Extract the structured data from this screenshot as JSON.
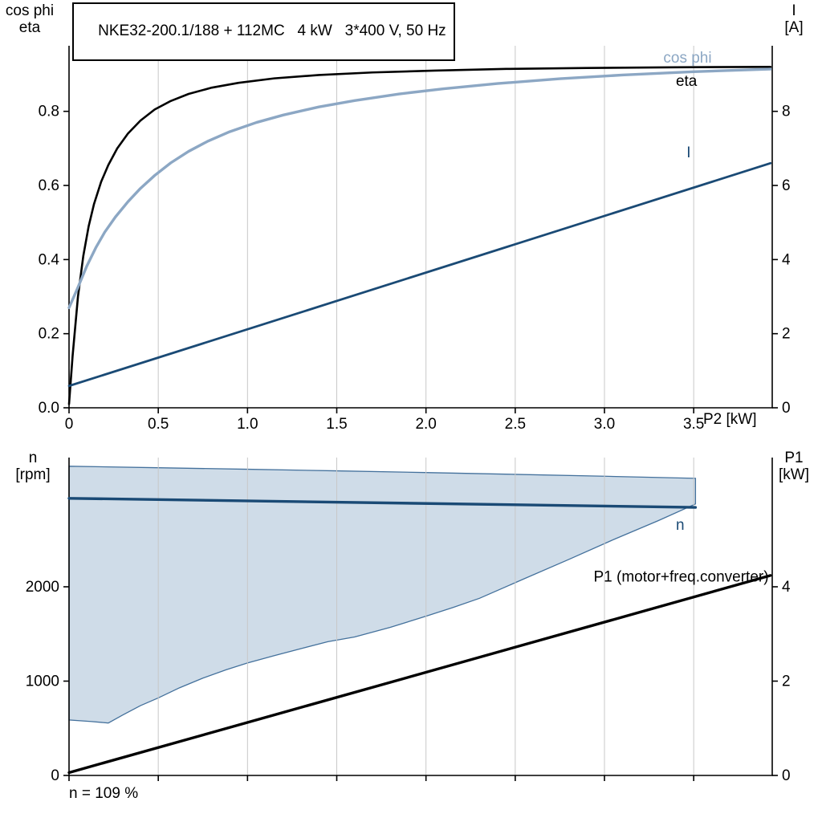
{
  "title_box": "NKE32-200.1/188 + 112MC   4 kW   3*400 V, 50 Hz",
  "footnote": "n = 109 %",
  "x_axis_label": "P2 [kW]",
  "axis_corner_labels": {
    "top_left_line1": "cos phi",
    "top_left_line2": "eta",
    "top_right_line1": "I",
    "top_right_line2": "[A]",
    "bottom_left_line1": "n",
    "bottom_left_line2": "[rpm]",
    "bottom_right_line1": "P1",
    "bottom_right_line2": "[kW]"
  },
  "colors": {
    "eta": "#000000",
    "cos_phi": "#8ca7c4",
    "line_blue": "#1a4a75",
    "p1": "#000000",
    "envelope_fill": "#cfdce8",
    "envelope_stroke": "#44719c",
    "grid": "#c8c8c8",
    "axis": "#000000",
    "background": "#ffffff"
  },
  "chart_data": [
    {
      "type": "line",
      "title": "NKE32-200.1/188 + 112MC   4 kW   3*400 V, 50 Hz",
      "xlabel": "P2 [kW]",
      "ylabel_left": "cos phi / eta",
      "ylabel_right": "I [A]",
      "xlim": [
        0,
        3.94
      ],
      "ylim_left": [
        0,
        0.977
      ],
      "ylim_right": [
        0,
        9.77
      ],
      "show_x_labels": true,
      "x_ticks": [
        {
          "v": 0,
          "t": "0"
        },
        {
          "v": 0.5,
          "t": "0.5"
        },
        {
          "v": 1,
          "t": "1.0"
        },
        {
          "v": 1.5,
          "t": "1.5"
        },
        {
          "v": 2,
          "t": "2.0"
        },
        {
          "v": 2.5,
          "t": "2.5"
        },
        {
          "v": 3,
          "t": "3.0"
        },
        {
          "v": 3.5,
          "t": "3.5"
        }
      ],
      "left_ticks": [
        {
          "v": 0,
          "t": "0.0"
        },
        {
          "v": 0.2,
          "t": "0.2"
        },
        {
          "v": 0.4,
          "t": "0.4"
        },
        {
          "v": 0.6,
          "t": "0.6"
        },
        {
          "v": 0.8,
          "t": "0.8"
        }
      ],
      "right_ticks": [
        {
          "v": 0,
          "t": "0"
        },
        {
          "v": 2,
          "t": "2"
        },
        {
          "v": 4,
          "t": "4"
        },
        {
          "v": 6,
          "t": "6"
        },
        {
          "v": 8,
          "t": "8"
        }
      ],
      "series": [
        {
          "name": "eta",
          "axis": "left",
          "color": "eta",
          "width": 2.6,
          "points": [
            [
              0,
              0.01
            ],
            [
              0.02,
              0.14
            ],
            [
              0.05,
              0.3
            ],
            [
              0.08,
              0.41
            ],
            [
              0.11,
              0.49
            ],
            [
              0.14,
              0.55
            ],
            [
              0.18,
              0.61
            ],
            [
              0.22,
              0.655
            ],
            [
              0.27,
              0.7
            ],
            [
              0.33,
              0.74
            ],
            [
              0.4,
              0.775
            ],
            [
              0.48,
              0.805
            ],
            [
              0.57,
              0.828
            ],
            [
              0.67,
              0.847
            ],
            [
              0.8,
              0.864
            ],
            [
              0.95,
              0.877
            ],
            [
              1.15,
              0.889
            ],
            [
              1.4,
              0.898
            ],
            [
              1.7,
              0.905
            ],
            [
              2.05,
              0.91
            ],
            [
              2.45,
              0.9145
            ],
            [
              2.9,
              0.917
            ],
            [
              3.4,
              0.919
            ],
            [
              3.93,
              0.92
            ]
          ]
        },
        {
          "name": "cos phi",
          "axis": "left",
          "color": "cos_phi",
          "width": 3.4,
          "points": [
            [
              0,
              0.27
            ],
            [
              0.05,
              0.325
            ],
            [
              0.1,
              0.383
            ],
            [
              0.15,
              0.432
            ],
            [
              0.2,
              0.474
            ],
            [
              0.26,
              0.515
            ],
            [
              0.33,
              0.556
            ],
            [
              0.4,
              0.592
            ],
            [
              0.48,
              0.627
            ],
            [
              0.57,
              0.661
            ],
            [
              0.67,
              0.692
            ],
            [
              0.78,
              0.72
            ],
            [
              0.9,
              0.745
            ],
            [
              1.05,
              0.77
            ],
            [
              1.2,
              0.79
            ],
            [
              1.4,
              0.812
            ],
            [
              1.6,
              0.829
            ],
            [
              1.85,
              0.847
            ],
            [
              2.1,
              0.861
            ],
            [
              2.4,
              0.875
            ],
            [
              2.75,
              0.888
            ],
            [
              3.1,
              0.898
            ],
            [
              3.5,
              0.907
            ],
            [
              3.93,
              0.914
            ]
          ]
        },
        {
          "name": "I",
          "axis": "right",
          "color": "line_blue",
          "width": 2.8,
          "points": [
            [
              0,
              0.59
            ],
            [
              3.93,
              6.6
            ]
          ]
        }
      ],
      "annotations": [
        {
          "text": "cos phi",
          "x": 3.33,
          "y": 0.932,
          "axis": "left",
          "color": "cos_phi",
          "anchor": "start"
        },
        {
          "text": "eta",
          "x": 3.4,
          "y": 0.869,
          "axis": "left",
          "color": "eta",
          "anchor": "start"
        },
        {
          "text": "I",
          "x": 3.46,
          "y": 0.676,
          "axis": "left",
          "color": "line_blue",
          "anchor": "start"
        }
      ]
    },
    {
      "type": "line",
      "ylabel_left": "n [rpm]",
      "ylabel_right": "P1 [kW]",
      "xlim": [
        0,
        3.94
      ],
      "ylim_left": [
        0,
        3370
      ],
      "ylim_right": [
        0,
        6.74
      ],
      "show_x_labels": false,
      "x_ticks": [
        {
          "v": 0
        },
        {
          "v": 0.5
        },
        {
          "v": 1
        },
        {
          "v": 1.5
        },
        {
          "v": 2
        },
        {
          "v": 2.5
        },
        {
          "v": 3
        },
        {
          "v": 3.5
        }
      ],
      "left_ticks": [
        {
          "v": 0,
          "t": "0"
        },
        {
          "v": 1000,
          "t": "1000"
        },
        {
          "v": 2000,
          "t": "2000"
        }
      ],
      "right_ticks": [
        {
          "v": 0,
          "t": "0"
        },
        {
          "v": 2,
          "t": "2"
        },
        {
          "v": 4,
          "t": "4"
        }
      ],
      "envelope": {
        "fill": "envelope_fill",
        "stroke": "envelope_stroke",
        "upper": [
          [
            0,
            3278
          ],
          [
            0.5,
            3262
          ],
          [
            1,
            3246
          ],
          [
            1.5,
            3229
          ],
          [
            2,
            3211
          ],
          [
            2.5,
            3192
          ],
          [
            3,
            3172
          ],
          [
            3.51,
            3150
          ]
        ],
        "lower": [
          [
            0,
            588
          ],
          [
            0.12,
            572
          ],
          [
            0.22,
            556
          ],
          [
            0.3,
            640
          ],
          [
            0.4,
            740
          ],
          [
            0.5,
            822
          ],
          [
            0.62,
            930
          ],
          [
            0.75,
            1032
          ],
          [
            0.88,
            1120
          ],
          [
            1,
            1192
          ],
          [
            1.15,
            1270
          ],
          [
            1.3,
            1345
          ],
          [
            1.45,
            1418
          ],
          [
            1.6,
            1468
          ],
          [
            1.8,
            1570
          ],
          [
            2,
            1688
          ],
          [
            2.15,
            1780
          ],
          [
            2.3,
            1878
          ],
          [
            2.55,
            2085
          ],
          [
            2.8,
            2290
          ],
          [
            3.05,
            2500
          ],
          [
            3.3,
            2700
          ],
          [
            3.51,
            2878
          ]
        ]
      },
      "series": [
        {
          "name": "n",
          "axis": "left",
          "color": "line_blue",
          "width": 3.4,
          "points": [
            [
              0,
              2938
            ],
            [
              3.51,
              2842
            ]
          ]
        },
        {
          "name": "P1",
          "axis": "right",
          "color": "p1",
          "width": 3.4,
          "points": [
            [
              0,
              0.06
            ],
            [
              3.93,
              4.24
            ]
          ]
        }
      ],
      "annotations": [
        {
          "text": "n",
          "x": 3.4,
          "y": 2604,
          "axis": "left",
          "color": "line_blue",
          "anchor": "start"
        },
        {
          "text": "P1 (motor+freq.converter)",
          "x": 3.92,
          "y": 2055,
          "axis": "left",
          "color": "p1",
          "anchor": "end"
        }
      ]
    }
  ]
}
